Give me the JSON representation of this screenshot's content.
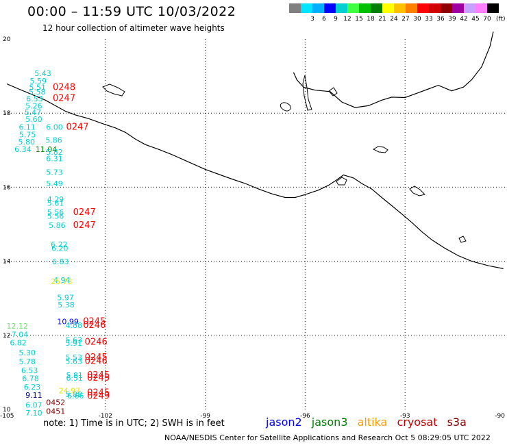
{
  "header": {
    "title": "00:00 – 11:59 UTC 10/03/2022",
    "subtitle": "12 hour collection of altimeter wave heights"
  },
  "colorbar": {
    "unit": "(ft)",
    "steps": [
      {
        "color": "#808080",
        "label": ""
      },
      {
        "color": "#00e5ff",
        "label": "3"
      },
      {
        "color": "#00b0ff",
        "label": "6"
      },
      {
        "color": "#0000ff",
        "label": "9"
      },
      {
        "color": "#00d0d0",
        "label": "12"
      },
      {
        "color": "#40ff40",
        "label": "15"
      },
      {
        "color": "#00c000",
        "label": "18"
      },
      {
        "color": "#008000",
        "label": "21"
      },
      {
        "color": "#ffff00",
        "label": "24"
      },
      {
        "color": "#ffc000",
        "label": "27"
      },
      {
        "color": "#ff8000",
        "label": "30"
      },
      {
        "color": "#ff0000",
        "label": "33"
      },
      {
        "color": "#d00000",
        "label": "36"
      },
      {
        "color": "#900000",
        "label": "39"
      },
      {
        "color": "#a000a0",
        "label": "42"
      },
      {
        "color": "#c8a0ff",
        "label": "45"
      },
      {
        "color": "#ff80ff",
        "label": "70"
      },
      {
        "color": "#000000",
        "label": ""
      }
    ]
  },
  "map": {
    "lon_range": [
      -105,
      -90
    ],
    "lat_range": [
      10,
      20
    ],
    "x_ticks": [
      {
        "lon": -105,
        "label": "-105"
      },
      {
        "lon": -102,
        "label": "-102"
      },
      {
        "lon": -99,
        "label": "-99"
      },
      {
        "lon": -96,
        "label": "-96"
      },
      {
        "lon": -93,
        "label": "-93"
      },
      {
        "lon": -90,
        "label": "-90"
      }
    ],
    "y_ticks": [
      {
        "lat": 20,
        "label": "20"
      },
      {
        "lat": 18,
        "label": "18"
      },
      {
        "lat": 16,
        "label": "16"
      },
      {
        "lat": 14,
        "label": "14"
      },
      {
        "lat": 12,
        "label": "12"
      },
      {
        "lat": 10,
        "label": "10"
      }
    ],
    "coastline": [
      [
        -104.96,
        18.79
      ],
      [
        -104.6,
        18.65
      ],
      [
        -104.2,
        18.5
      ],
      [
        -103.8,
        18.35
      ],
      [
        -103.5,
        18.2
      ],
      [
        -103.2,
        18.05
      ],
      [
        -102.9,
        17.95
      ],
      [
        -102.5,
        17.85
      ],
      [
        -102.1,
        17.72
      ],
      [
        -101.7,
        17.6
      ],
      [
        -101.4,
        17.48
      ],
      [
        -101.1,
        17.3
      ],
      [
        -100.8,
        17.15
      ],
      [
        -100.4,
        17.02
      ],
      [
        -100.0,
        16.88
      ],
      [
        -99.6,
        16.72
      ],
      [
        -99.3,
        16.6
      ],
      [
        -99.0,
        16.48
      ],
      [
        -98.6,
        16.35
      ],
      [
        -98.2,
        16.22
      ],
      [
        -97.8,
        16.1
      ],
      [
        -97.4,
        15.95
      ],
      [
        -97.0,
        15.82
      ],
      [
        -96.6,
        15.72
      ],
      [
        -96.3,
        15.72
      ],
      [
        -96.0,
        15.8
      ],
      [
        -95.6,
        15.92
      ],
      [
        -95.3,
        16.05
      ],
      [
        -95.05,
        16.2
      ],
      [
        -94.85,
        16.33
      ],
      [
        -94.55,
        16.25
      ],
      [
        -94.3,
        16.1
      ],
      [
        -94.0,
        15.95
      ],
      [
        -93.7,
        15.72
      ],
      [
        -93.4,
        15.5
      ],
      [
        -93.1,
        15.28
      ],
      [
        -92.8,
        15.05
      ],
      [
        -92.5,
        14.8
      ],
      [
        -92.2,
        14.58
      ],
      [
        -91.8,
        14.35
      ],
      [
        -91.4,
        14.15
      ],
      [
        -91.0,
        14.0
      ],
      [
        -90.5,
        13.88
      ],
      [
        -90.05,
        13.8
      ]
    ],
    "gulf_coast": [
      [
        -96.35,
        19.1
      ],
      [
        -96.25,
        18.9
      ],
      [
        -96.05,
        18.7
      ],
      [
        -95.7,
        18.62
      ],
      [
        -95.25,
        18.58
      ],
      [
        -94.9,
        18.3
      ],
      [
        -94.5,
        18.15
      ],
      [
        -94.1,
        18.2
      ],
      [
        -93.7,
        18.35
      ],
      [
        -93.4,
        18.43
      ],
      [
        -93.0,
        18.42
      ],
      [
        -92.6,
        18.55
      ],
      [
        -92.3,
        18.65
      ],
      [
        -92.0,
        18.75
      ],
      [
        -91.6,
        18.6
      ],
      [
        -91.25,
        18.7
      ],
      [
        -91.0,
        18.9
      ],
      [
        -90.7,
        19.25
      ],
      [
        -90.45,
        19.8
      ],
      [
        -90.35,
        20.2
      ]
    ],
    "observations": [
      {
        "lon": -104.13,
        "lat": 19.0,
        "text": "5.43",
        "color": "#00d0d0"
      },
      {
        "lon": -104.27,
        "lat": 18.8,
        "text": "5.59",
        "color": "#00d0d0"
      },
      {
        "lon": -104.29,
        "lat": 18.62,
        "text": "5.51",
        "color": "#00d0d0"
      },
      {
        "lon": -104.3,
        "lat": 18.5,
        "text": "5.58",
        "color": "#00d0d0"
      },
      {
        "lon": -104.38,
        "lat": 18.32,
        "text": "6.53",
        "color": "#00d0d0"
      },
      {
        "lon": -104.4,
        "lat": 18.12,
        "text": "5.26",
        "color": "#00d0d0"
      },
      {
        "lon": -104.43,
        "lat": 17.95,
        "text": "5.47",
        "color": "#00d0d0"
      },
      {
        "lon": -104.4,
        "lat": 17.76,
        "text": "5.60",
        "color": "#00d0d0"
      },
      {
        "lon": -104.6,
        "lat": 17.55,
        "text": "6.11",
        "color": "#00d0d0"
      },
      {
        "lon": -103.78,
        "lat": 17.55,
        "text": "6.00",
        "color": "#00d0d0"
      },
      {
        "lon": -104.59,
        "lat": 17.35,
        "text": "5.75",
        "color": "#00d0d0"
      },
      {
        "lon": -104.62,
        "lat": 17.15,
        "text": "5.80",
        "color": "#00d0d0"
      },
      {
        "lon": -103.8,
        "lat": 17.2,
        "text": "5.86",
        "color": "#00d0d0"
      },
      {
        "lon": -104.73,
        "lat": 16.95,
        "text": "6.34",
        "color": "#00d0d0"
      },
      {
        "lon": -104.1,
        "lat": 16.95,
        "text": "11.04",
        "color": "#008000"
      },
      {
        "lon": -103.78,
        "lat": 16.88,
        "text": "5.82",
        "color": "#00d0d0"
      },
      {
        "lon": -103.78,
        "lat": 16.7,
        "text": "6.31",
        "color": "#00d0d0"
      },
      {
        "lon": -103.78,
        "lat": 16.33,
        "text": "5.73",
        "color": "#00d0d0"
      },
      {
        "lon": -103.78,
        "lat": 16.03,
        "text": "5.49",
        "color": "#00d0d0"
      },
      {
        "lon": -103.75,
        "lat": 15.6,
        "text": "4.29",
        "color": "#00d0d0"
      },
      {
        "lon": -103.75,
        "lat": 15.5,
        "text": "5.61",
        "color": "#00d0d0"
      },
      {
        "lon": -103.75,
        "lat": 15.25,
        "text": "5.56",
        "color": "#00d0d0"
      },
      {
        "lon": -103.75,
        "lat": 15.15,
        "text": "5.56",
        "color": "#00d0d0"
      },
      {
        "lon": -103.7,
        "lat": 14.9,
        "text": "5.86",
        "color": "#00d0d0"
      },
      {
        "lon": -103.64,
        "lat": 14.38,
        "text": "6.22",
        "color": "#00d0d0"
      },
      {
        "lon": -103.62,
        "lat": 14.28,
        "text": "6.20",
        "color": "#00d0d0"
      },
      {
        "lon": -103.6,
        "lat": 13.92,
        "text": "6.83",
        "color": "#00d0d0"
      },
      {
        "lon": -103.56,
        "lat": 13.42,
        "text": "4.94",
        "color": "#00d0d0"
      },
      {
        "lon": -103.64,
        "lat": 13.38,
        "text": "25.73",
        "color": "#e6e600"
      },
      {
        "lon": -103.45,
        "lat": 12.95,
        "text": "5.97",
        "color": "#00d0d0"
      },
      {
        "lon": -103.43,
        "lat": 12.75,
        "text": "5.38",
        "color": "#00d0d0"
      },
      {
        "lon": -103.45,
        "lat": 12.3,
        "text": "10.99",
        "color": "#0000ff"
      },
      {
        "lon": -103.2,
        "lat": 12.2,
        "text": "4.88",
        "color": "#00d0d0"
      },
      {
        "lon": -104.97,
        "lat": 12.18,
        "text": "12.12",
        "color": "#70e070"
      },
      {
        "lon": -104.82,
        "lat": 11.95,
        "text": "7.04",
        "color": "#00d0d0"
      },
      {
        "lon": -104.87,
        "lat": 11.73,
        "text": "6.82",
        "color": "#00d0d0"
      },
      {
        "lon": -103.2,
        "lat": 11.8,
        "text": "5.63",
        "color": "#00d0d0"
      },
      {
        "lon": -103.2,
        "lat": 11.72,
        "text": "5.91",
        "color": "#00d0d0"
      },
      {
        "lon": -104.6,
        "lat": 11.46,
        "text": "5.30",
        "color": "#00d0d0"
      },
      {
        "lon": -104.6,
        "lat": 11.22,
        "text": "5.78",
        "color": "#00d0d0"
      },
      {
        "lon": -103.2,
        "lat": 11.33,
        "text": "5.53",
        "color": "#00d0d0"
      },
      {
        "lon": -103.2,
        "lat": 11.23,
        "text": "5.63",
        "color": "#00d0d0"
      },
      {
        "lon": -104.53,
        "lat": 10.98,
        "text": "6.53",
        "color": "#00d0d0"
      },
      {
        "lon": -104.5,
        "lat": 10.77,
        "text": "6.78",
        "color": "#00d0d0"
      },
      {
        "lon": -103.18,
        "lat": 10.85,
        "text": "5.81",
        "color": "#00d0d0"
      },
      {
        "lon": -103.18,
        "lat": 10.78,
        "text": "6.51",
        "color": "#00d0d0"
      },
      {
        "lon": -104.45,
        "lat": 10.54,
        "text": "6.23",
        "color": "#00d0d0"
      },
      {
        "lon": -104.4,
        "lat": 10.31,
        "text": "9.11",
        "color": "#000080"
      },
      {
        "lon": -103.4,
        "lat": 10.43,
        "text": "24.97",
        "color": "#e6e600"
      },
      {
        "lon": -103.2,
        "lat": 10.33,
        "text": "5.88",
        "color": "#00d0d0"
      },
      {
        "lon": -103.15,
        "lat": 10.3,
        "text": "6.66",
        "color": "#00d0d0"
      },
      {
        "lon": -104.4,
        "lat": 10.05,
        "text": "6.07",
        "color": "#00d0d0"
      },
      {
        "lon": -104.4,
        "lat": 9.83,
        "text": "7.10",
        "color": "#00d0d0"
      },
      {
        "lon": -103.78,
        "lat": 10.12,
        "text": "0452",
        "color": "#800000"
      },
      {
        "lon": -103.78,
        "lat": 9.88,
        "text": "0451",
        "color": "#800000"
      }
    ],
    "time_labels": [
      {
        "lon": -103.58,
        "lat": 18.62,
        "text": "0248",
        "color": "#ff0000"
      },
      {
        "lon": -103.58,
        "lat": 18.33,
        "text": "0247",
        "color": "#ff0000"
      },
      {
        "lon": -103.18,
        "lat": 17.55,
        "text": "0247",
        "color": "#ff0000"
      },
      {
        "lon": -102.97,
        "lat": 15.25,
        "text": "0247",
        "color": "#ff0000"
      },
      {
        "lon": -102.97,
        "lat": 14.9,
        "text": "0247",
        "color": "#ff0000"
      },
      {
        "lon": -102.67,
        "lat": 12.3,
        "text": "0245",
        "color": "#ff0000"
      },
      {
        "lon": -102.67,
        "lat": 12.2,
        "text": "0246",
        "color": "#ff0000"
      },
      {
        "lon": -102.62,
        "lat": 11.75,
        "text": "0246",
        "color": "#ff0000"
      },
      {
        "lon": -102.62,
        "lat": 11.33,
        "text": "0245",
        "color": "#ff0000"
      },
      {
        "lon": -102.62,
        "lat": 11.23,
        "text": "0246",
        "color": "#ff0000"
      },
      {
        "lon": -102.55,
        "lat": 10.85,
        "text": "0245",
        "color": "#ff0000"
      },
      {
        "lon": -102.55,
        "lat": 10.78,
        "text": "0245",
        "color": "#ff0000"
      },
      {
        "lon": -102.55,
        "lat": 10.38,
        "text": "0245",
        "color": "#ff0000"
      },
      {
        "lon": -102.55,
        "lat": 10.29,
        "text": "0249",
        "color": "#ff0000"
      }
    ]
  },
  "footer": {
    "note": "note:  1) Time is in UTC;  2) SWH is in feet",
    "satellites": [
      {
        "name": "jason2",
        "color": "#0000ff"
      },
      {
        "name": "jason3",
        "color": "#008000"
      },
      {
        "name": "altika",
        "color": "#ff9900"
      },
      {
        "name": "cryosat",
        "color": "#c00000"
      },
      {
        "name": "s3a",
        "color": "#800000"
      }
    ],
    "credit": "NOAA/NESDIS Center for Satellite Applications and Research    Oct  5 08:29:05 UTC 2022"
  }
}
